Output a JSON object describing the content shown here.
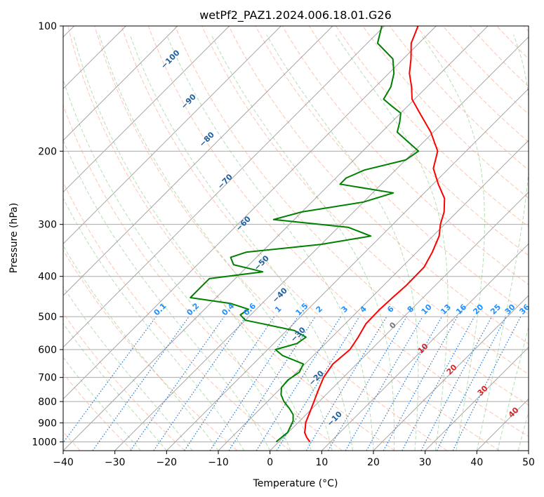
{
  "chart_data": {
    "type": "line",
    "title": "wetPf2_PAZ1.2024.006.18.01.G26",
    "xlabel": "Temperature (°C)",
    "ylabel": "Pressure (hPa)",
    "xlim": [
      -40,
      50
    ],
    "ylim": [
      1050,
      100
    ],
    "y_scale": "log",
    "x_ticks": [
      "−40",
      "−30",
      "−20",
      "−10",
      "0",
      "10",
      "20",
      "30",
      "40",
      "50"
    ],
    "y_ticks": [
      "100",
      "200",
      "300",
      "400",
      "500",
      "600",
      "700",
      "800",
      "900",
      "1000"
    ],
    "grid": true,
    "skew_degrees": 45,
    "series": [
      {
        "color": "#ff0000",
        "points": [
          [
            1000,
            6.0
          ],
          [
            975,
            4.5
          ],
          [
            950,
            3.2
          ],
          [
            925,
            2.4
          ],
          [
            900,
            1.5
          ],
          [
            850,
            0.3
          ],
          [
            800,
            -1.0
          ],
          [
            750,
            -2.4
          ],
          [
            700,
            -3.8
          ],
          [
            650,
            -4.6
          ],
          [
            600,
            -4.1
          ],
          [
            560,
            -4.9
          ],
          [
            520,
            -6.0
          ],
          [
            480,
            -6.1
          ],
          [
            450,
            -5.9
          ],
          [
            420,
            -5.6
          ],
          [
            380,
            -5.7
          ],
          [
            350,
            -7.0
          ],
          [
            320,
            -8.8
          ],
          [
            300,
            -10.8
          ],
          [
            280,
            -12.5
          ],
          [
            260,
            -15.0
          ],
          [
            240,
            -19.0
          ],
          [
            220,
            -23.0
          ],
          [
            200,
            -25.5
          ],
          [
            180,
            -30.5
          ],
          [
            160,
            -37.0
          ],
          [
            150,
            -40.5
          ],
          [
            140,
            -43.0
          ],
          [
            130,
            -46.0
          ],
          [
            120,
            -48.5
          ],
          [
            110,
            -51.5
          ],
          [
            100,
            -53.5
          ]
        ]
      },
      {
        "color": "#008000",
        "points": [
          [
            1000,
            -0.5
          ],
          [
            970,
            -0.3
          ],
          [
            950,
            -0.1
          ],
          [
            920,
            -0.7
          ],
          [
            890,
            -1.3
          ],
          [
            860,
            -2.5
          ],
          [
            830,
            -4.5
          ],
          [
            800,
            -6.8
          ],
          [
            770,
            -8.7
          ],
          [
            740,
            -10.0
          ],
          [
            710,
            -10.2
          ],
          [
            680,
            -9.5
          ],
          [
            650,
            -10.3
          ],
          [
            620,
            -16.0
          ],
          [
            600,
            -18.5
          ],
          [
            580,
            -15.5
          ],
          [
            560,
            -15.0
          ],
          [
            540,
            -18.5
          ],
          [
            520,
            -26.0
          ],
          [
            510,
            -30.0
          ],
          [
            495,
            -32.0
          ],
          [
            480,
            -31.5
          ],
          [
            465,
            -36.0
          ],
          [
            450,
            -45.0
          ],
          [
            420,
            -45.0
          ],
          [
            405,
            -45.0
          ],
          [
            390,
            -36.0
          ],
          [
            375,
            -43.0
          ],
          [
            360,
            -45.0
          ],
          [
            350,
            -43.0
          ],
          [
            335,
            -30.0
          ],
          [
            320,
            -22.0
          ],
          [
            305,
            -28.0
          ],
          [
            292,
            -44.0
          ],
          [
            280,
            -40.0
          ],
          [
            265,
            -30.0
          ],
          [
            252,
            -26.0
          ],
          [
            240,
            -38.0
          ],
          [
            232,
            -38.0
          ],
          [
            222,
            -36.0
          ],
          [
            210,
            -30.0
          ],
          [
            200,
            -29.2
          ],
          [
            190,
            -33.0
          ],
          [
            180,
            -37.0
          ],
          [
            170,
            -38.5
          ],
          [
            162,
            -40.0
          ],
          [
            155,
            -43.5
          ],
          [
            150,
            -46.0
          ],
          [
            140,
            -47.0
          ],
          [
            130,
            -49.0
          ],
          [
            120,
            -52.0
          ],
          [
            110,
            -58.0
          ],
          [
            100,
            -60.5
          ]
        ]
      }
    ],
    "dry_adiabat_labels": [
      "−100",
      "−90",
      "−80",
      "−70",
      "−60",
      "−50",
      "−40",
      "−30",
      "−20",
      "−10"
    ],
    "mixing_ratio_labels": [
      "0.1",
      "0.2",
      "0.4",
      "0.6",
      "1",
      "1.5",
      "2",
      "3",
      "4",
      "6",
      "8",
      "10",
      "13",
      "16",
      "20",
      "25",
      "30",
      "36"
    ],
    "moist_adiabat_labels": [
      "0",
      "10",
      "20",
      "30",
      "40"
    ]
  }
}
